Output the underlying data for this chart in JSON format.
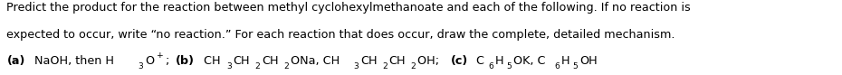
{
  "background_color": "#ffffff",
  "figsize": [
    9.3,
    0.83
  ],
  "dpi": 100,
  "text_color": "#000000",
  "fontsize": 9.2,
  "line1": "Predict the product for the reaction between methyl cyclohexylmethanoate and each of the following. If no reaction is",
  "line2": "expected to occur, write “no reaction.” For each reaction that does occur, draw the complete, detailed mechanism.",
  "line3_segments": [
    {
      "t": "(a)",
      "bold": true,
      "sub": false,
      "sup": false
    },
    {
      "t": " NaOH, then H",
      "bold": false,
      "sub": false,
      "sup": false
    },
    {
      "t": "3",
      "bold": false,
      "sub": true,
      "sup": false
    },
    {
      "t": "O",
      "bold": false,
      "sub": false,
      "sup": false
    },
    {
      "t": "+",
      "bold": false,
      "sub": false,
      "sup": true
    },
    {
      "t": "; ",
      "bold": false,
      "sub": false,
      "sup": false
    },
    {
      "t": "(b)",
      "bold": true,
      "sub": false,
      "sup": false
    },
    {
      "t": " CH",
      "bold": false,
      "sub": false,
      "sup": false
    },
    {
      "t": "3",
      "bold": false,
      "sub": true,
      "sup": false
    },
    {
      "t": "CH",
      "bold": false,
      "sub": false,
      "sup": false
    },
    {
      "t": "2",
      "bold": false,
      "sub": true,
      "sup": false
    },
    {
      "t": "CH",
      "bold": false,
      "sub": false,
      "sup": false
    },
    {
      "t": "2",
      "bold": false,
      "sub": true,
      "sup": false
    },
    {
      "t": "ONa, CH",
      "bold": false,
      "sub": false,
      "sup": false
    },
    {
      "t": "3",
      "bold": false,
      "sub": true,
      "sup": false
    },
    {
      "t": "CH",
      "bold": false,
      "sub": false,
      "sup": false
    },
    {
      "t": "2",
      "bold": false,
      "sub": true,
      "sup": false
    },
    {
      "t": "CH",
      "bold": false,
      "sub": false,
      "sup": false
    },
    {
      "t": "2",
      "bold": false,
      "sub": true,
      "sup": false
    },
    {
      "t": "OH; ",
      "bold": false,
      "sub": false,
      "sup": false
    },
    {
      "t": "(c)",
      "bold": true,
      "sub": false,
      "sup": false
    },
    {
      "t": " C",
      "bold": false,
      "sub": false,
      "sup": false
    },
    {
      "t": "6",
      "bold": false,
      "sub": true,
      "sup": false
    },
    {
      "t": "H",
      "bold": false,
      "sub": false,
      "sup": false
    },
    {
      "t": "5",
      "bold": false,
      "sub": true,
      "sup": false
    },
    {
      "t": "OK, C",
      "bold": false,
      "sub": false,
      "sup": false
    },
    {
      "t": "6",
      "bold": false,
      "sub": true,
      "sup": false
    },
    {
      "t": "H",
      "bold": false,
      "sub": false,
      "sup": false
    },
    {
      "t": "5",
      "bold": false,
      "sub": true,
      "sup": false
    },
    {
      "t": "OH",
      "bold": false,
      "sub": false,
      "sup": false
    }
  ]
}
